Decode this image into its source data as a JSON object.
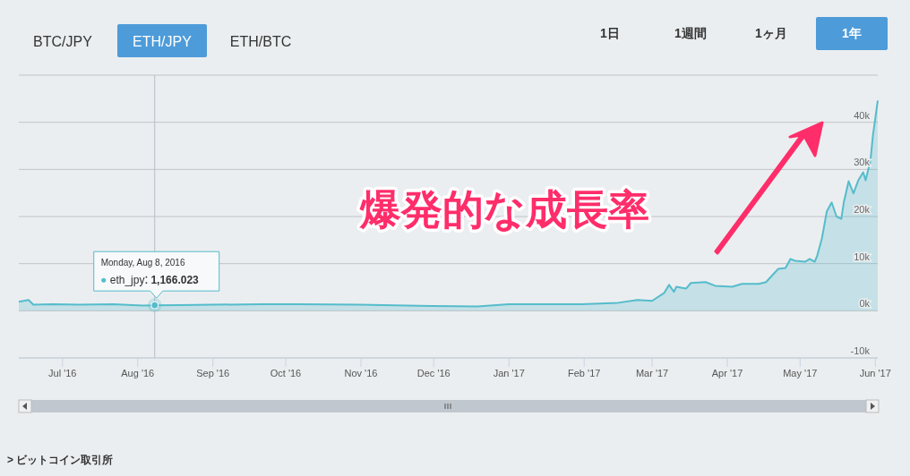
{
  "chart_data": {
    "type": "area",
    "x": [
      "2016-06-13",
      "2016-06-17",
      "2016-06-19",
      "2016-06-27",
      "2016-07-08",
      "2016-07-22",
      "2016-08-03",
      "2016-08-08",
      "2016-08-18",
      "2016-09-21",
      "2016-10-06",
      "2016-10-31",
      "2016-11-30",
      "2016-12-19",
      "2017-01-01",
      "2017-01-31",
      "2017-02-15",
      "2017-02-23",
      "2017-03-01",
      "2017-03-06",
      "2017-03-08",
      "2017-03-10",
      "2017-03-11",
      "2017-03-15",
      "2017-03-17",
      "2017-03-23",
      "2017-03-27",
      "2017-04-03",
      "2017-04-07",
      "2017-04-14",
      "2017-04-17",
      "2017-04-20",
      "2017-04-22",
      "2017-04-25",
      "2017-04-27",
      "2017-04-29",
      "2017-05-03",
      "2017-05-05",
      "2017-05-07",
      "2017-05-08",
      "2017-05-10",
      "2017-05-12",
      "2017-05-14",
      "2017-05-16",
      "2017-05-18",
      "2017-05-19",
      "2017-05-21",
      "2017-05-23",
      "2017-05-25",
      "2017-05-27",
      "2017-05-28",
      "2017-05-30",
      "2017-05-31",
      "2017-06-02"
    ],
    "series": [
      {
        "name": "eth_jpy",
        "color": "#55bccb",
        "value_labels": [
          null,
          null,
          null,
          null,
          null,
          null,
          null,
          "1,166.023",
          null,
          null,
          null,
          null,
          null,
          null,
          null,
          null,
          null,
          null,
          null,
          null,
          null,
          null,
          null,
          null,
          null,
          null,
          null,
          null,
          null,
          null,
          null,
          null,
          null,
          null,
          null,
          null,
          null,
          null,
          null,
          null,
          null,
          null,
          null,
          null,
          null,
          null,
          null,
          null,
          null,
          null,
          null,
          null,
          null,
          null
        ],
        "values": [
          1900,
          2300,
          1300,
          1400,
          1300,
          1400,
          1100,
          1166.023,
          1200,
          1400,
          1400,
          1300,
          1000,
          900,
          1400,
          1400,
          1700,
          2300,
          2100,
          3800,
          5500,
          4000,
          5100,
          4700,
          5900,
          6100,
          5300,
          5100,
          5700,
          5700,
          6100,
          7800,
          8900,
          9100,
          11000,
          10600,
          10400,
          11000,
          10400,
          11600,
          15400,
          21100,
          23000,
          20000,
          19500,
          23000,
          27500,
          24900,
          27700,
          29400,
          27700,
          31900,
          37200,
          44600
        ]
      }
    ],
    "xlim": [
      "2016-06-13",
      "2017-06-02"
    ],
    "xticks": [
      {
        "value": "2016-07-01",
        "label": "Jul '16"
      },
      {
        "value": "2016-08-01",
        "label": "Aug '16"
      },
      {
        "value": "2016-09-01",
        "label": "Sep '16"
      },
      {
        "value": "2016-10-01",
        "label": "Oct '16"
      },
      {
        "value": "2016-11-01",
        "label": "Nov '16"
      },
      {
        "value": "2016-12-01",
        "label": "Dec '16"
      },
      {
        "value": "2017-01-01",
        "label": "Jan '17"
      },
      {
        "value": "2017-02-01",
        "label": "Feb '17"
      },
      {
        "value": "2017-03-01",
        "label": "Mar '17"
      },
      {
        "value": "2017-04-01",
        "label": "Apr '17"
      },
      {
        "value": "2017-05-01",
        "label": "May '17"
      },
      {
        "value": "2017-06-01",
        "label": "Jun '17"
      }
    ],
    "ylim": [
      -10000,
      50000
    ],
    "yticks": [
      {
        "value": -10000,
        "label": "-10k"
      },
      {
        "value": 0,
        "label": "0k"
      },
      {
        "value": 10000,
        "label": "10k"
      },
      {
        "value": 20000,
        "label": "20k"
      },
      {
        "value": 30000,
        "label": "30k"
      },
      {
        "value": 40000,
        "label": "40k"
      },
      {
        "value": 50000,
        "label": null
      }
    ],
    "grid": "y",
    "legend": false,
    "ref_lines": [
      {
        "axis": "x",
        "value": "2016-08-08",
        "color": "#b8bec4"
      }
    ],
    "annotations": [
      "BTC/JPY",
      "ETH/JPY",
      "ETH/BTC",
      "1日",
      "1週間",
      "1ヶ月",
      "1年",
      "爆発的な成長率",
      "> ビットコイン取引所",
      "Monday, Aug 8, 2016"
    ]
  }
}
